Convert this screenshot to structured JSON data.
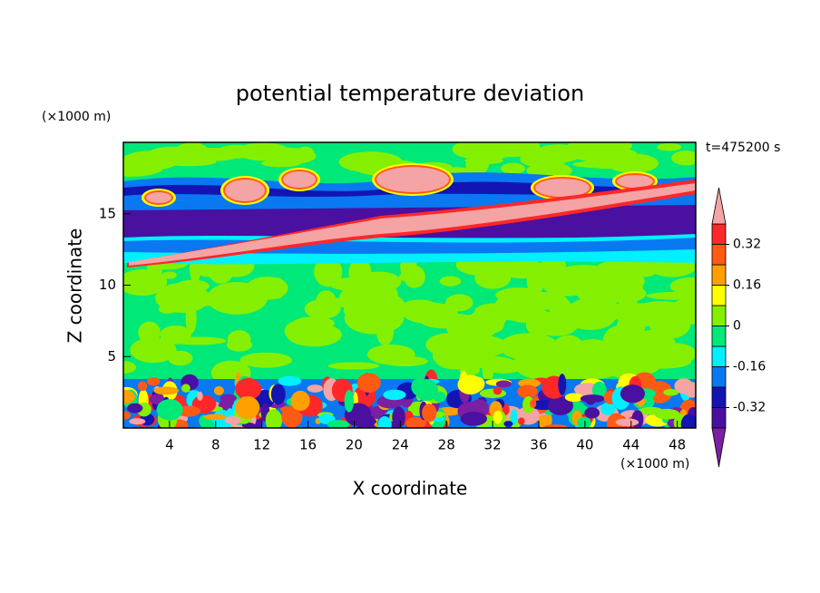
{
  "chart_data": {
    "type": "contourf",
    "title": "potential temperature deviation",
    "xlabel": "X coordinate",
    "ylabel": "Z coordinate",
    "x_unit": "(×1000 m)",
    "y_unit": "(×1000 m)",
    "annotation": "t=475200 s",
    "xlim": [
      0,
      49.6
    ],
    "ylim": [
      0,
      20
    ],
    "xticks": [
      4,
      8,
      12,
      16,
      20,
      24,
      28,
      32,
      36,
      40,
      44,
      48
    ],
    "yticks": [
      5,
      10,
      15
    ],
    "levels": [
      -0.4,
      -0.32,
      -0.24,
      -0.16,
      -0.08,
      0,
      0.08,
      0.16,
      0.24,
      0.32,
      0.4
    ],
    "colorbar_ticks": [
      -0.32,
      -0.16,
      0,
      0.16,
      0.32
    ],
    "colors": [
      "#7b1fa3",
      "#4a10a0",
      "#1414b4",
      "#0a78f0",
      "#00f0ff",
      "#00e878",
      "#84f000",
      "#ffff00",
      "#ffa000",
      "#ff5a14",
      "#ff2828",
      "#f4a4a4"
    ]
  }
}
